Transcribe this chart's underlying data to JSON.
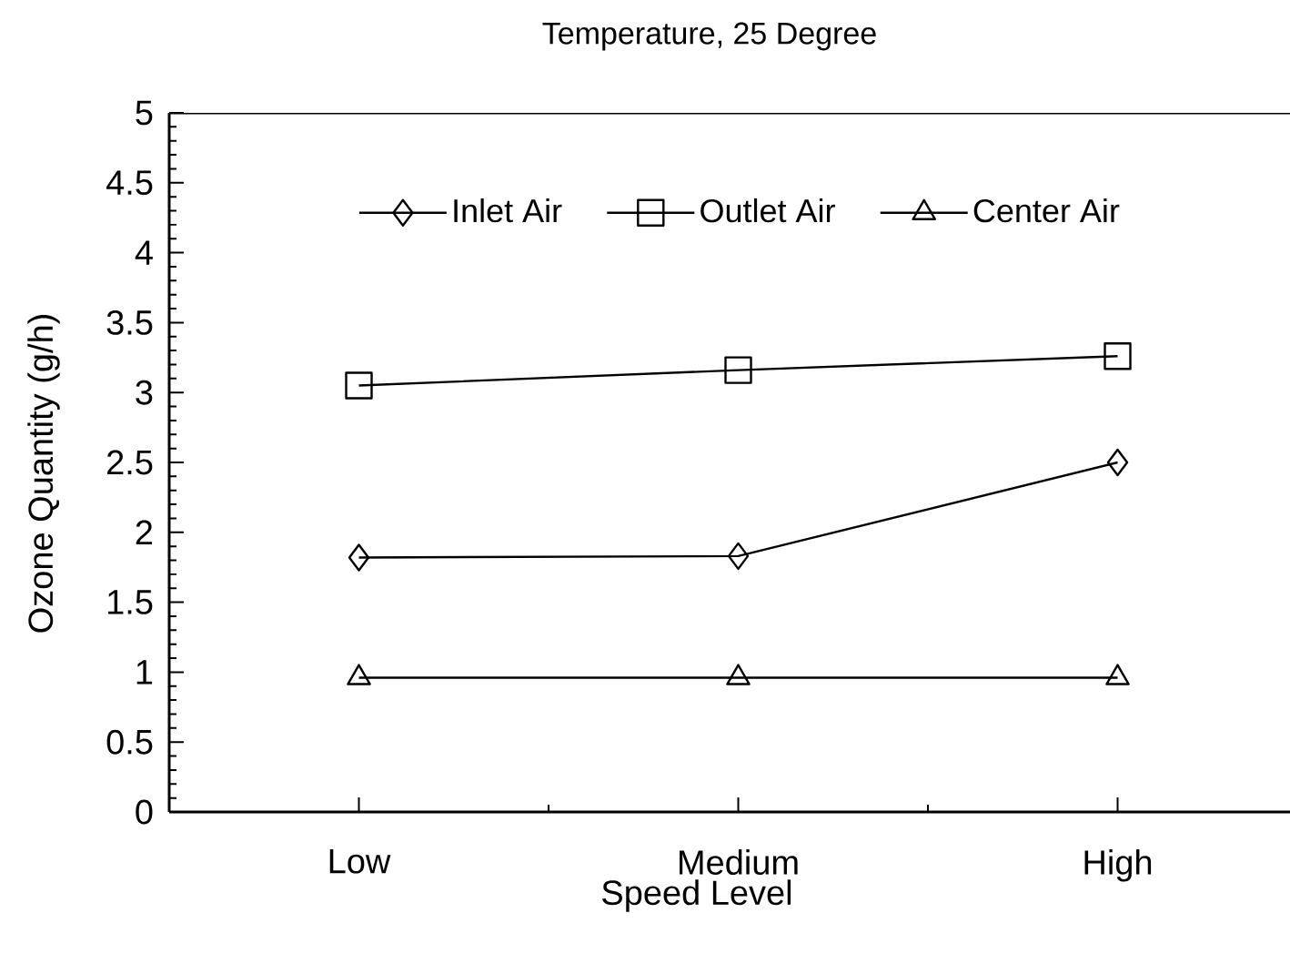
{
  "chart_data": {
    "type": "line",
    "title": "Temperature, 25 Degree",
    "xlabel": "Speed Level",
    "ylabel": "Ozone Quantity (g/h)",
    "categories": [
      "Low",
      "Medium",
      "High"
    ],
    "series": [
      {
        "name": "Inlet Air",
        "color": "#000000",
        "marker": "diamond",
        "values": [
          1.82,
          1.83,
          2.5
        ]
      },
      {
        "name": "Outlet Air",
        "color": "#000000",
        "marker": "square",
        "values": [
          3.05,
          3.16,
          3.26
        ]
      },
      {
        "name": "Center Air",
        "color": "#000000",
        "marker": "triangle",
        "values": [
          0.96,
          0.96,
          0.96
        ]
      }
    ],
    "ylim": [
      0,
      5
    ],
    "yticks": [
      0,
      0.5,
      1,
      1.5,
      2,
      2.5,
      3,
      3.5,
      4,
      4.5,
      5
    ],
    "grid": false,
    "legend": "top",
    "line_style": "solid"
  }
}
